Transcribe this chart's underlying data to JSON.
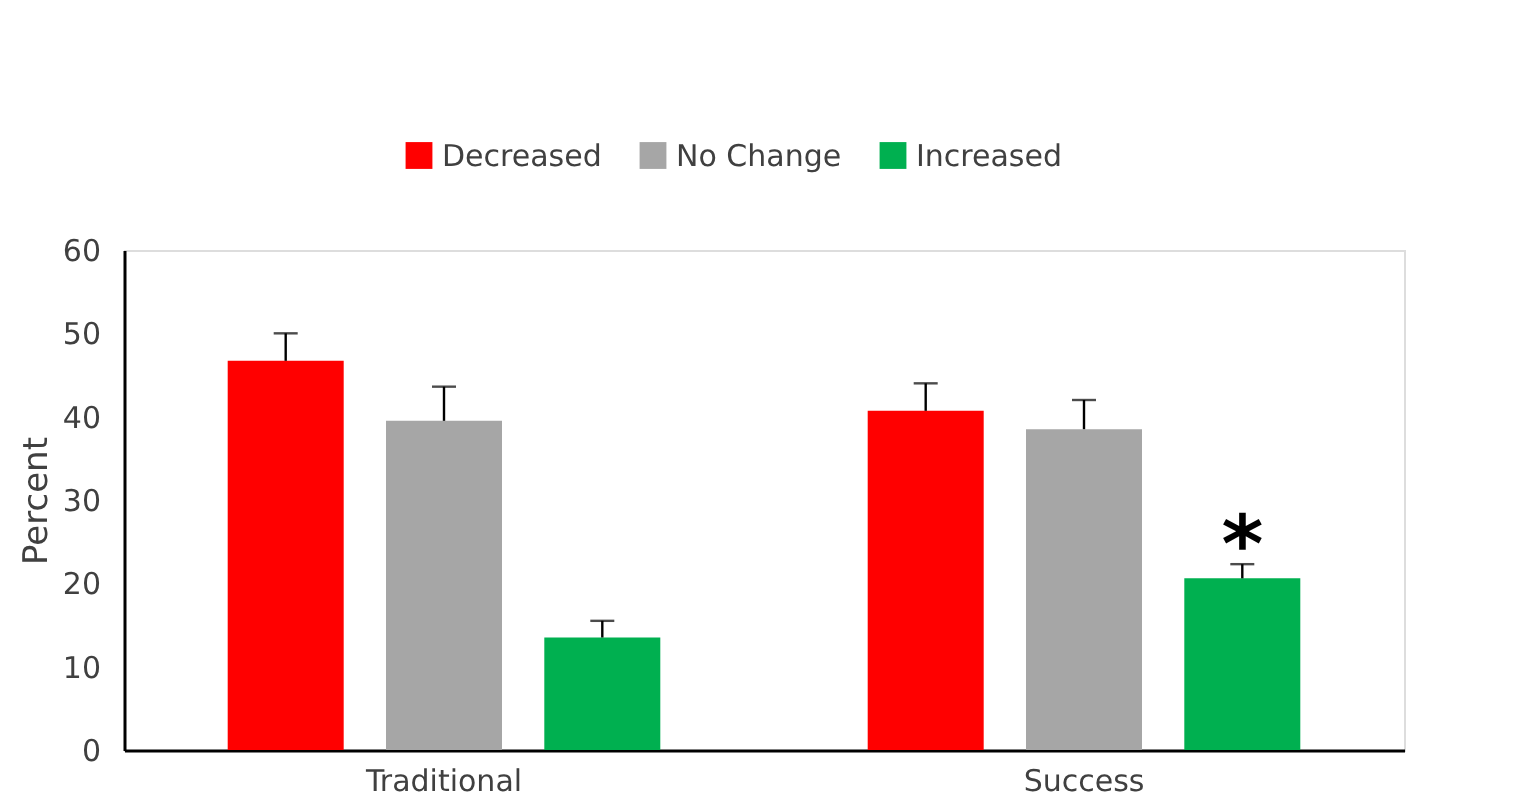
{
  "chart_data": {
    "type": "bar",
    "ylabel": "Percent",
    "categories": [
      "Traditional",
      "Success"
    ],
    "series": [
      {
        "name": "Decreased",
        "color": "#ff0000",
        "values": [
          46.7,
          40.7
        ],
        "errors": [
          [
            46.7,
            50
          ],
          [
            40.7,
            44
          ]
        ]
      },
      {
        "name": "No Change",
        "color": "#a6a6a6",
        "values": [
          39.5,
          38.5
        ],
        "errors": [
          [
            39.5,
            43.6
          ],
          [
            38.5,
            42
          ]
        ]
      },
      {
        "name": "Increased",
        "color": "#00b050",
        "values": [
          13.5,
          20.6
        ],
        "errors": [
          [
            13.5,
            15.5
          ],
          [
            20.6,
            22.3
          ]
        ]
      }
    ],
    "annotations": [
      "*"
    ],
    "ylim": [
      0,
      60
    ],
    "yticks": [
      0,
      10,
      20,
      30,
      40,
      50,
      60
    ],
    "grid": false,
    "legend": "top"
  }
}
